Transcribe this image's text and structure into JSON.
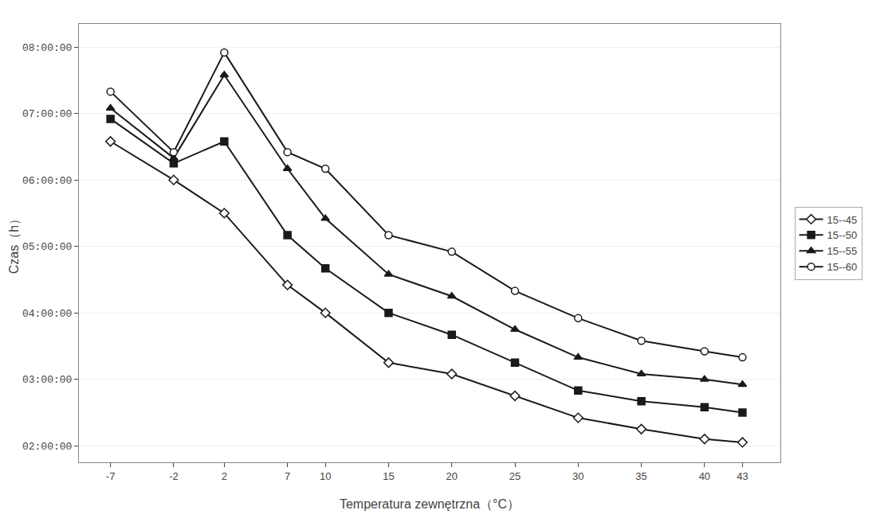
{
  "chart_data": {
    "type": "line",
    "xlabel": "Temperatura zewnętrzna（°C）",
    "ylabel": "Czas（h）",
    "x": [
      -7,
      -2,
      2,
      7,
      10,
      15,
      20,
      25,
      30,
      35,
      40,
      43
    ],
    "series": [
      {
        "name": "15--45",
        "color": "#1a1a1a",
        "marker": "diamond-open",
        "values": [
          6.58,
          6.0,
          5.5,
          4.42,
          4.0,
          3.25,
          3.08,
          2.75,
          2.42,
          2.25,
          2.1,
          2.05
        ]
      },
      {
        "name": "15--50",
        "color": "#1a1a1a",
        "marker": "square",
        "values": [
          6.92,
          6.25,
          6.58,
          5.17,
          4.67,
          4.0,
          3.67,
          3.25,
          2.83,
          2.67,
          2.58,
          2.5
        ]
      },
      {
        "name": "15--55",
        "color": "#1a1a1a",
        "marker": "triangle-up",
        "values": [
          7.08,
          6.33,
          7.58,
          6.17,
          5.42,
          4.58,
          4.25,
          3.75,
          3.33,
          3.08,
          3.0,
          2.92
        ]
      },
      {
        "name": "15--60",
        "color": "#1a1a1a",
        "marker": "circle-open",
        "values": [
          7.33,
          6.42,
          7.92,
          6.42,
          6.17,
          5.17,
          4.92,
          4.33,
          3.92,
          3.58,
          3.42,
          3.33
        ]
      }
    ],
    "xlim": [
      -9.5,
      46.0
    ],
    "xticks": [
      -7,
      -2,
      2,
      7,
      10,
      15,
      20,
      25,
      30,
      35,
      40,
      43
    ],
    "ylim": [
      1.75,
      8.35
    ],
    "yticks": [
      {
        "value": 2.0,
        "label": "02:00:00"
      },
      {
        "value": 3.0,
        "label": "03:00:00"
      },
      {
        "value": 4.0,
        "label": "04:00:00"
      },
      {
        "value": 5.0,
        "label": "05:00:00"
      },
      {
        "value": 6.0,
        "label": "06:00:00"
      },
      {
        "value": 7.0,
        "label": "07:00:00"
      },
      {
        "value": 8.0,
        "label": "08:00:00"
      }
    ],
    "grid": true,
    "legend": "right"
  }
}
